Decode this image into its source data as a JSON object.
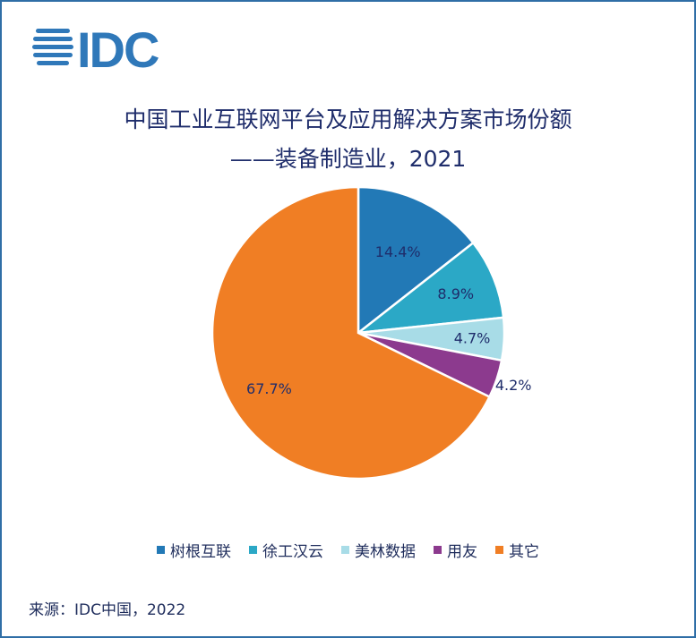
{
  "logo": {
    "text": "IDC",
    "color": "#2f78b9"
  },
  "title_line1": "中国工业互联网平台及应用解决方案市场份额",
  "title_line2": "——装备制造业，2021",
  "chart_data": {
    "type": "pie",
    "start": "12 o'clock, clockwise",
    "series": [
      {
        "name": "树根互联",
        "value": 14.4,
        "label": "14.4%",
        "color": "#2279b6"
      },
      {
        "name": "徐工汉云",
        "value": 8.9,
        "label": "8.9%",
        "color": "#2ba8c6"
      },
      {
        "name": "美林数据",
        "value": 4.7,
        "label": "4.7%",
        "color": "#a8dce7"
      },
      {
        "name": "用友",
        "value": 4.2,
        "label": "4.2%",
        "color": "#8c3a8e"
      },
      {
        "name": "其它",
        "value": 67.7,
        "label": "67.7%",
        "color": "#f07e24"
      }
    ],
    "legend": "bottom"
  },
  "source": "来源：IDC中国，2022"
}
